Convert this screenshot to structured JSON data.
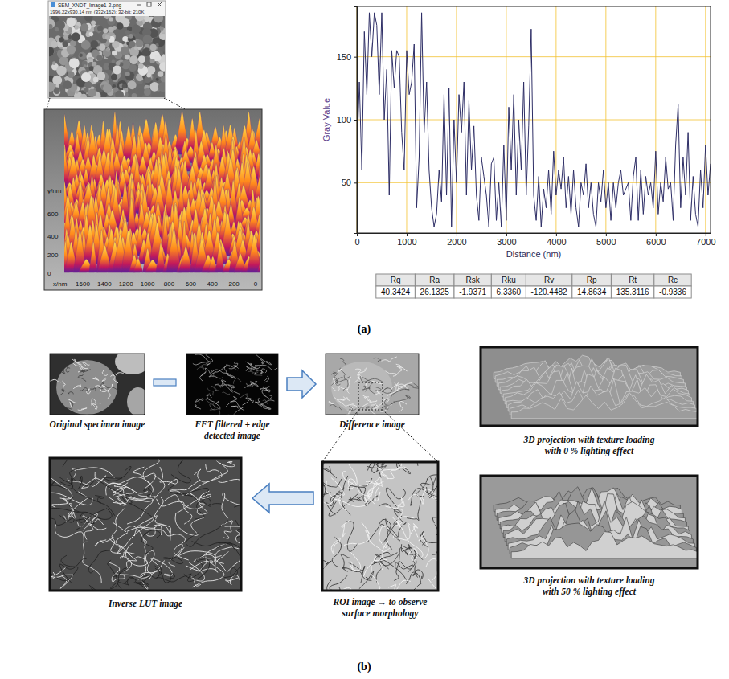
{
  "chart_data": {
    "type": "line",
    "x": [
      0,
      50,
      100,
      150,
      200,
      250,
      300,
      350,
      400,
      450,
      500,
      550,
      600,
      650,
      700,
      750,
      800,
      850,
      900,
      950,
      1000,
      1050,
      1100,
      1150,
      1200,
      1250,
      1300,
      1350,
      1400,
      1450,
      1500,
      1550,
      1600,
      1650,
      1700,
      1750,
      1800,
      1850,
      1900,
      1950,
      2000,
      2050,
      2100,
      2150,
      2200,
      2250,
      2300,
      2350,
      2400,
      2450,
      2500,
      2550,
      2600,
      2650,
      2700,
      2750,
      2800,
      2850,
      2900,
      2950,
      3000,
      3050,
      3100,
      3150,
      3200,
      3250,
      3300,
      3350,
      3400,
      3450,
      3500,
      3550,
      3600,
      3650,
      3700,
      3750,
      3800,
      3850,
      3900,
      3950,
      4000,
      4050,
      4100,
      4150,
      4200,
      4250,
      4300,
      4350,
      4400,
      4450,
      4500,
      4550,
      4600,
      4650,
      4700,
      4750,
      4800,
      4850,
      4900,
      4950,
      5000,
      5050,
      5100,
      5150,
      5200,
      5250,
      5300,
      5350,
      5400,
      5450,
      5500,
      5550,
      5600,
      5650,
      5700,
      5750,
      5800,
      5850,
      5900,
      5950,
      6000,
      6050,
      6100,
      6150,
      6200,
      6250,
      6300,
      6350,
      6400,
      6450,
      6500,
      6550,
      6600,
      6650,
      6700,
      6750,
      6800,
      6850,
      6900,
      6950,
      7000,
      7050,
      7100
    ],
    "values": [
      70,
      130,
      60,
      170,
      120,
      185,
      150,
      185,
      175,
      120,
      185,
      100,
      140,
      40,
      155,
      125,
      155,
      150,
      90,
      60,
      155,
      120,
      130,
      160,
      30,
      70,
      185,
      90,
      130,
      60,
      30,
      15,
      25,
      60,
      35,
      120,
      40,
      125,
      15,
      100,
      50,
      120,
      90,
      130,
      40,
      115,
      60,
      95,
      40,
      20,
      70,
      55,
      40,
      15,
      65,
      70,
      20,
      50,
      15,
      80,
      20,
      110,
      60,
      120,
      40,
      100,
      60,
      130,
      40,
      95,
      172,
      40,
      20,
      55,
      15,
      45,
      30,
      60,
      25,
      75,
      40,
      60,
      45,
      70,
      30,
      55,
      25,
      60,
      30,
      15,
      50,
      40,
      65,
      30,
      50,
      25,
      15,
      50,
      35,
      60,
      30,
      50,
      20,
      50,
      30,
      50,
      60,
      40,
      45,
      50,
      20,
      55,
      70,
      20,
      60,
      25,
      55,
      40,
      50,
      30,
      75,
      25,
      50,
      35,
      70,
      45,
      50,
      20,
      80,
      112,
      30,
      70,
      40,
      90,
      20,
      55,
      25,
      15,
      60,
      30,
      80,
      40,
      65
    ],
    "color": "#2e2e66",
    "xlabel": "Distance (nm)",
    "ylabel": "Gray Value",
    "xlim": [
      0,
      7100
    ],
    "ylim": [
      10,
      190
    ],
    "xticks": [
      0,
      1000,
      2000,
      3000,
      4000,
      5000,
      6000,
      7000
    ],
    "yticks": [
      50,
      100,
      150
    ],
    "grid": true
  },
  "roughness_table": {
    "columns": [
      "Rq",
      "Ra",
      "Rsk",
      "Rku",
      "Rv",
      "Rp",
      "Rt",
      "Rc"
    ],
    "values": [
      "40.3424",
      "26.1325",
      "-1.9371",
      "6.3360",
      "-120.4482",
      "14.8634",
      "135.3116",
      "-0.9336"
    ]
  },
  "panel_a": {
    "label": "(a)",
    "image_window": {
      "title": "SEM_XNDT_Image1-2.png",
      "info": "1996.22x930.14 nm (332x162); 32-bit; 210K"
    },
    "surface_plot": {
      "x_label": "x/nm",
      "y_label": "y/nm",
      "x_ticks": [
        1600,
        1400,
        1200,
        1000,
        800,
        600,
        400,
        200,
        0
      ],
      "y_ticks": [
        0,
        200,
        400,
        600
      ]
    }
  },
  "panel_b": {
    "label": "(b)",
    "captions": {
      "original": [
        "Original specimen image"
      ],
      "fft": [
        "FFT filtered + edge",
        "detected image"
      ],
      "difference": [
        "Difference image"
      ],
      "roi": [
        "ROI image → to observe",
        "surface morphology"
      ],
      "inverse_lut": [
        "Inverse LUT image"
      ],
      "projection_0": [
        "3D projection with texture loading",
        "with 0 % lighting effect"
      ],
      "projection_50": [
        "3D projection with texture loading",
        "with 50 % lighting effect"
      ]
    }
  }
}
